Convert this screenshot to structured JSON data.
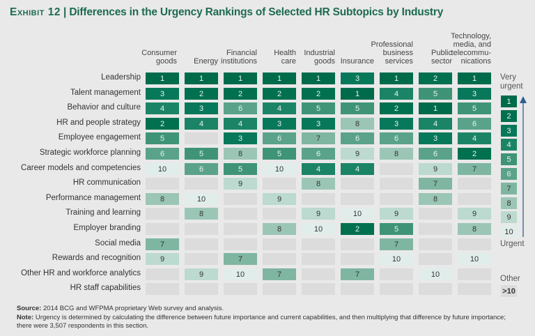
{
  "chart_data": {
    "type": "heatmap",
    "title_prefix": "Exhibit 12",
    "title": "Differences in the Urgency Rankings of Selected HR Subtopics by Industry",
    "columns": [
      "Consumer\ngoods",
      "Energy",
      "Financial\ninstitutions",
      "Health\ncare",
      "Industrial\ngoods",
      "Insurance",
      "Professional\nbusiness\nservices",
      "Public\nsector",
      "Technology,\nmedia, and\ntelecommu-\nnications"
    ],
    "rows": [
      "Leadership",
      "Talent management",
      "Behavior and culture",
      "HR and people strategy",
      "Employee engagement",
      "Strategic workforce planning",
      "Career models and competencies",
      "HR communication",
      "Performance management",
      "Training and learning",
      "Employer branding",
      "Social media",
      "Rewards and recognition",
      "Other HR and workforce analytics",
      "HR staff capabilities"
    ],
    "values": [
      [
        1,
        1,
        1,
        1,
        1,
        3,
        1,
        2,
        1
      ],
      [
        3,
        2,
        2,
        2,
        2,
        1,
        4,
        5,
        3
      ],
      [
        4,
        3,
        6,
        4,
        5,
        5,
        2,
        1,
        5
      ],
      [
        2,
        4,
        4,
        3,
        3,
        8,
        3,
        4,
        6
      ],
      [
        5,
        null,
        3,
        6,
        7,
        6,
        6,
        3,
        4
      ],
      [
        6,
        5,
        8,
        5,
        6,
        9,
        8,
        6,
        2
      ],
      [
        10,
        6,
        5,
        10,
        4,
        4,
        null,
        9,
        7
      ],
      [
        null,
        null,
        9,
        null,
        8,
        null,
        null,
        7,
        null
      ],
      [
        8,
        10,
        null,
        9,
        null,
        null,
        null,
        8,
        null
      ],
      [
        null,
        8,
        null,
        null,
        9,
        10,
        9,
        null,
        9
      ],
      [
        null,
        null,
        null,
        8,
        10,
        2,
        5,
        null,
        8
      ],
      [
        7,
        null,
        null,
        null,
        null,
        null,
        7,
        null,
        null
      ],
      [
        9,
        null,
        7,
        null,
        null,
        null,
        10,
        null,
        10
      ],
      [
        null,
        9,
        10,
        7,
        null,
        7,
        null,
        10,
        null
      ],
      [
        null,
        null,
        null,
        null,
        null,
        null,
        null,
        null,
        null
      ]
    ],
    "null_meaning": "Other (>10)",
    "legend": {
      "top_label": "Very\nurgent",
      "bottom_label": "Urgent",
      "scale": [
        1,
        2,
        3,
        4,
        5,
        6,
        7,
        8,
        9,
        10
      ],
      "other_label": "Other",
      "other_value": ">10",
      "placement": "right"
    },
    "colors": {
      "1": "#006b4a",
      "2": "#00704f",
      "3": "#08785a",
      "4": "#1c8466",
      "5": "#3f9478",
      "6": "#5aa38a",
      "7": "#7fb6a2",
      "8": "#9bc6b6",
      "9": "#bcdacf",
      "10": "#e1edea",
      "other": "#dcdcdc"
    },
    "light_text_threshold": 6
  },
  "footnotes": {
    "source_label": "Source:",
    "source_text": " 2014 BCG and WFPMA proprietary Web survey and analysis.",
    "note_label": "Note:",
    "note_text": " Urgency is determined by calculating the difference between future importance and current capabilities, and then multiplying that difference by future importance; there were 3,507 respondents in this section."
  }
}
